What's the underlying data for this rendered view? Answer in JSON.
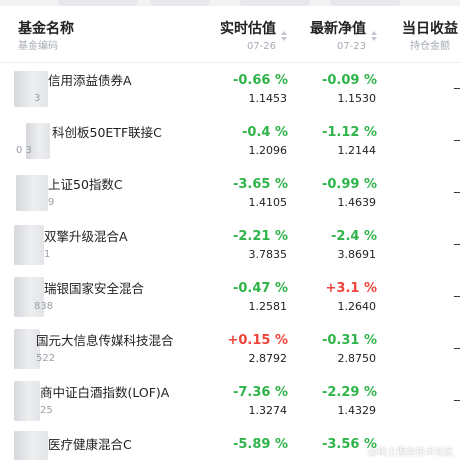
{
  "header": {
    "name_col": {
      "title": "基金名称",
      "sub": "基金编码"
    },
    "est_col": {
      "title": "实时估值",
      "sub": "07-26"
    },
    "nav_col": {
      "title": "最新净值",
      "sub": "07-23"
    },
    "profit_col": {
      "title": "当日收益",
      "sub": "持仓金额"
    }
  },
  "colors": {
    "up": "#f0443a",
    "down": "#2fb449"
  },
  "rows": [
    {
      "name": "信用添益债券A",
      "code": "3",
      "est_pct": "-0.66 %",
      "est_val": "1.1453",
      "nav_pct": "-0.09 %",
      "nav_val": "1.1530",
      "profit": "--"
    },
    {
      "name": "科创板50ETF联接C",
      "code": "0 3",
      "est_pct": "-0.4 %",
      "est_val": "1.2096",
      "nav_pct": "-1.12 %",
      "nav_val": "1.2144",
      "profit": "--"
    },
    {
      "name": "上证50指数C",
      "code": "9",
      "est_pct": "-3.65 %",
      "est_val": "1.4105",
      "nav_pct": "-0.99 %",
      "nav_val": "1.4639",
      "profit": "--"
    },
    {
      "name": "双擎升级混合A",
      "code": "1",
      "est_pct": "-2.21 %",
      "est_val": "3.7835",
      "nav_pct": "-2.4 %",
      "nav_val": "3.8691",
      "profit": "--"
    },
    {
      "name": "瑞银国家安全混合",
      "code": "838",
      "est_pct": "-0.47 %",
      "est_val": "1.2581",
      "nav_pct": "+3.1 %",
      "nav_val": "1.2640",
      "profit": "--"
    },
    {
      "name": "国元大信息传媒科技混合",
      "code": "522",
      "est_pct": "+0.15 %",
      "est_val": "2.8792",
      "nav_pct": "-0.31 %",
      "nav_val": "2.8750",
      "profit": "--"
    },
    {
      "name": "商中证白酒指数(LOF)A",
      "code": "25",
      "est_pct": "-7.36 %",
      "est_val": "1.3274",
      "nav_pct": "-2.29 %",
      "nav_val": "1.4329",
      "profit": "--"
    },
    {
      "name": "医疗健康混合C",
      "code": "",
      "est_pct": "-5.89 %",
      "est_val": "",
      "nav_pct": "-3.56 %",
      "nav_val": "",
      "profit": ""
    }
  ],
  "watermark": "@稀土掘金技术社区"
}
